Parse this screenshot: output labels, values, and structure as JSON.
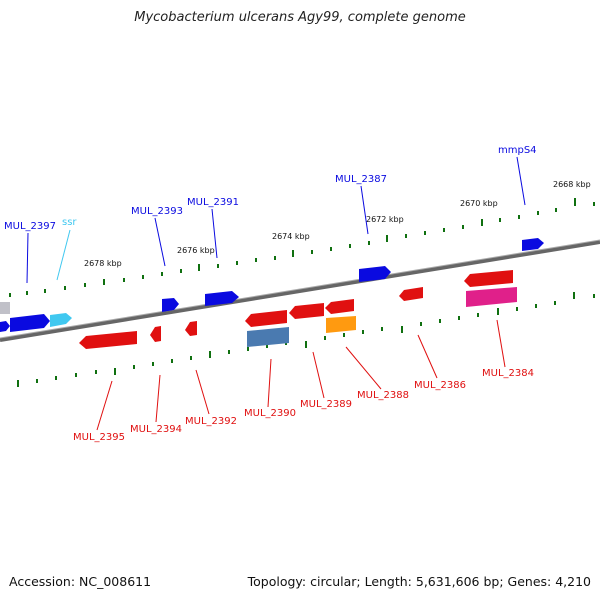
{
  "title": "Mycobacterium ulcerans Agy99, complete genome",
  "footer": {
    "accession": "Accession: NC_008611",
    "summary": "Topology: circular; Length: 5,631,606 bp; Genes: 4,210"
  },
  "colors": {
    "forward_gene": "#0a0ae0",
    "reverse_gene": "#e01010",
    "trna": "#40c8f0",
    "pink_feature": "#e0208a",
    "orange_feature": "#ff9a10",
    "steel_feature": "#4a7ab0",
    "tick": "#107010",
    "backbone": "#888888"
  },
  "kbp_ticks": [
    {
      "label": "2668 kbp"
    },
    {
      "label": "2670 kbp"
    },
    {
      "label": "2672 kbp"
    },
    {
      "label": "2674 kbp"
    },
    {
      "label": "2676 kbp"
    },
    {
      "label": "2678 kbp"
    }
  ],
  "top_labels": [
    {
      "text": "mmpS4",
      "color": "#0a0ae0"
    },
    {
      "text": "MUL_2387",
      "color": "#0a0ae0"
    },
    {
      "text": "MUL_2391",
      "color": "#0a0ae0"
    },
    {
      "text": "MUL_2393",
      "color": "#0a0ae0"
    },
    {
      "text": "ssr",
      "color": "#40c8f0"
    },
    {
      "text": "MUL_2397",
      "color": "#0a0ae0"
    }
  ],
  "bottom_labels": [
    {
      "text": "MUL_2384"
    },
    {
      "text": "MUL_2386"
    },
    {
      "text": "MUL_2388"
    },
    {
      "text": "MUL_2389"
    },
    {
      "text": "MUL_2390"
    },
    {
      "text": "MUL_2392"
    },
    {
      "text": "MUL_2394"
    },
    {
      "text": "MUL_2395"
    }
  ]
}
